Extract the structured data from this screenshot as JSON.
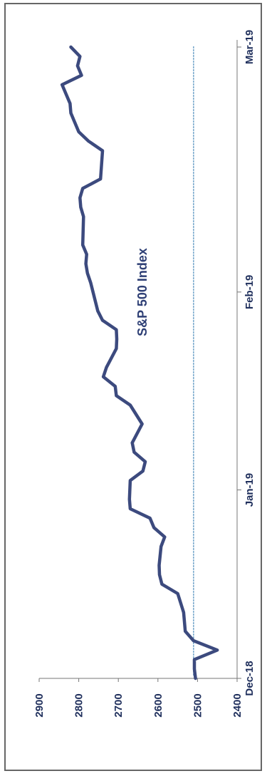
{
  "chart_data": {
    "type": "line",
    "title": "S&P 500 Index",
    "xlabel": "",
    "ylabel": "",
    "ylim": [
      2400,
      2900
    ],
    "yticks": [
      "2400",
      "2500",
      "2600",
      "2700",
      "2800",
      "2900"
    ],
    "xlim": [
      "2018-12-24",
      "2019-03-01"
    ],
    "xticks": [
      {
        "label": "Dec-18",
        "date": "2018-12-24"
      },
      {
        "label": "Jan-19",
        "date": "2019-01-13"
      },
      {
        "label": "Feb-19",
        "date": "2019-02-03"
      },
      {
        "label": "Mar-19",
        "date": "2019-03-01"
      }
    ],
    "reference_line": {
      "value": 2510
    },
    "grid": false,
    "colors": {
      "series": "#3c4a7e",
      "reference": "#6b9fc7",
      "text": "#1f2f5c"
    },
    "series": [
      {
        "x": [
          "2018-12-24",
          "2018-12-25",
          "2018-12-26",
          "2018-12-27",
          "2018-12-28",
          "2018-12-29",
          "2018-12-31",
          "2019-01-02",
          "2019-01-03",
          "2019-01-04",
          "2019-01-05",
          "2019-01-07",
          "2019-01-08",
          "2019-01-09",
          "2019-01-10",
          "2019-01-11",
          "2019-01-12",
          "2019-01-14",
          "2019-01-15",
          "2019-01-16",
          "2019-01-17",
          "2019-01-18",
          "2019-01-20",
          "2019-01-22",
          "2019-01-23",
          "2019-01-24",
          "2019-01-25",
          "2019-01-26",
          "2019-01-28",
          "2019-01-29",
          "2019-01-30",
          "2019-01-31",
          "2019-02-01",
          "2019-02-04",
          "2019-02-05",
          "2019-02-06",
          "2019-02-07",
          "2019-02-08",
          "2019-02-11",
          "2019-02-12",
          "2019-02-13",
          "2019-02-14",
          "2019-02-15",
          "2019-02-18",
          "2019-02-19",
          "2019-02-20",
          "2019-02-21",
          "2019-02-22",
          "2019-02-23",
          "2019-02-25",
          "2019-02-26",
          "2019-02-27",
          "2019-02-28",
          "2019-03-01"
        ],
        "values": [
          2505,
          2508,
          2508,
          2450,
          2510,
          2531,
          2535,
          2550,
          2590,
          2596,
          2597,
          2592,
          2583,
          2610,
          2620,
          2670,
          2672,
          2670,
          2638,
          2632,
          2660,
          2665,
          2640,
          2670,
          2705,
          2708,
          2738,
          2730,
          2705,
          2704,
          2705,
          2740,
          2752,
          2770,
          2778,
          2782,
          2780,
          2790,
          2788,
          2795,
          2797,
          2790,
          2745,
          2740,
          2775,
          2800,
          2810,
          2820,
          2822,
          2842,
          2793,
          2803,
          2797,
          2820
        ]
      }
    ]
  }
}
